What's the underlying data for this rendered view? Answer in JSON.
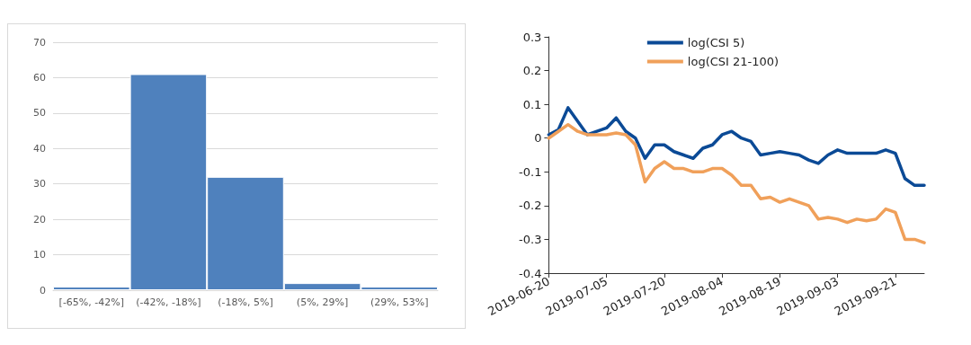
{
  "chart_data": [
    {
      "type": "bar",
      "categories": [
        "[-65%, -42%]",
        "(-42%, -18%]",
        "(-18%, 5%]",
        "(5%, 29%]",
        "(29%, 53%]"
      ],
      "values": [
        1,
        61,
        32,
        2,
        1
      ],
      "color": "#4f81bd",
      "ylim": [
        0,
        70
      ],
      "yticks": [
        0,
        10,
        20,
        30,
        40,
        50,
        60,
        70
      ],
      "grid": "y",
      "legend": false
    },
    {
      "type": "line",
      "categories": [
        "2019-06-20",
        null,
        null,
        null,
        null,
        null,
        "2019-07-05",
        null,
        null,
        null,
        null,
        null,
        "2019-07-20",
        null,
        null,
        null,
        null,
        null,
        "2019-08-04",
        null,
        null,
        null,
        null,
        null,
        "2019-08-19",
        null,
        null,
        null,
        null,
        null,
        "2019-09-03",
        null,
        null,
        null,
        null,
        null,
        "2019-09-21",
        null,
        null,
        null
      ],
      "series": [
        {
          "name": "log(CSI 5)",
          "color": "#0b4a96",
          "values": [
            0.01,
            0.025,
            0.09,
            0.05,
            0.01,
            0.02,
            0.03,
            0.06,
            0.02,
            0.0,
            -0.06,
            -0.02,
            -0.02,
            -0.04,
            -0.05,
            -0.06,
            -0.03,
            -0.02,
            0.01,
            0.02,
            0.0,
            -0.01,
            -0.05,
            -0.045,
            -0.04,
            -0.045,
            -0.05,
            -0.065,
            -0.075,
            -0.05,
            -0.035,
            -0.045,
            -0.045,
            -0.045,
            -0.045,
            -0.035,
            -0.045,
            -0.12,
            -0.14,
            -0.14
          ]
        },
        {
          "name": "log(CSI 21-100)",
          "color": "#f0a05a",
          "values": [
            0.0,
            0.02,
            0.04,
            0.02,
            0.01,
            0.01,
            0.01,
            0.015,
            0.01,
            -0.02,
            -0.13,
            -0.09,
            -0.07,
            -0.09,
            -0.09,
            -0.1,
            -0.1,
            -0.09,
            -0.09,
            -0.11,
            -0.14,
            -0.14,
            -0.18,
            -0.175,
            -0.19,
            -0.18,
            -0.19,
            -0.2,
            -0.24,
            -0.235,
            -0.24,
            -0.25,
            -0.24,
            -0.245,
            -0.24,
            -0.21,
            -0.22,
            -0.3,
            -0.3,
            -0.31
          ]
        }
      ],
      "ylim": [
        -0.4,
        0.3
      ],
      "yticks": [
        -0.4,
        -0.3,
        -0.2,
        -0.1,
        0,
        0.1,
        0.2,
        0.3
      ],
      "grid": false,
      "legend": "top",
      "marker": "none",
      "line_style": "solid"
    }
  ]
}
